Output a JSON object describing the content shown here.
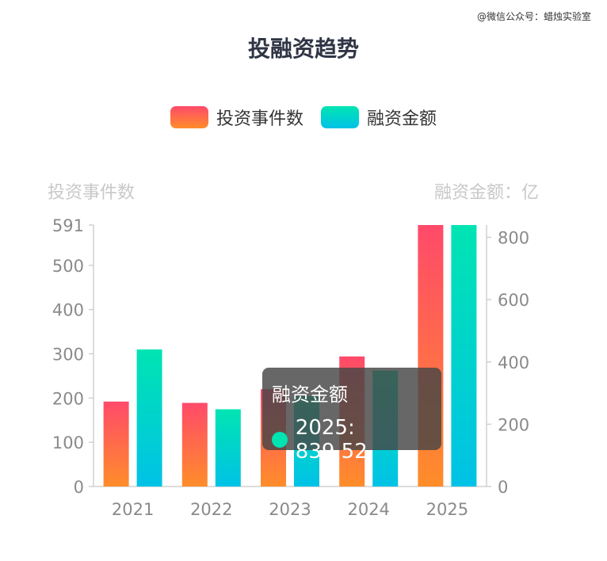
{
  "watermark": "@微信公众号：蜡烛实验室",
  "chart_data": {
    "type": "bar",
    "title": "投融资趋势",
    "categories": [
      "2021",
      "2022",
      "2023",
      "2024",
      "2025"
    ],
    "series": [
      {
        "name": "投资事件数",
        "axis": "left",
        "values": [
          192,
          189,
          220,
          294,
          591
        ],
        "color_top": "#ff4a6a",
        "color_bottom": "#ff8d2a"
      },
      {
        "name": "融资金额",
        "axis": "right",
        "values": [
          440,
          248,
          290,
          372,
          839.52
        ],
        "color_top": "#00e4b2",
        "color_bottom": "#00c2e6"
      }
    ],
    "y_left": {
      "label": "投资事件数",
      "ylim": [
        0,
        591
      ],
      "ticks": [
        0,
        100,
        200,
        300,
        400,
        500,
        591
      ]
    },
    "y_right": {
      "label": "融资金额：亿",
      "ylim": [
        0,
        839.52
      ],
      "ticks": [
        0,
        200,
        400,
        600,
        800
      ]
    },
    "legend": "top-center",
    "grid": false,
    "tooltip": {
      "title": "融资金额",
      "category": "2025",
      "value": "839.52",
      "text": "2025: 839.52"
    }
  }
}
